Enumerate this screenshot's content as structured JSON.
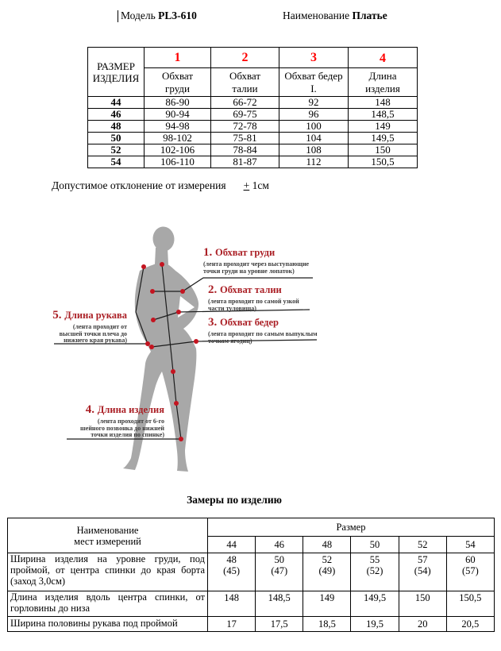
{
  "header": {
    "model_label": "Модель",
    "model_value": "PL3-610",
    "name_label": "Наименование",
    "name_value": "Платье"
  },
  "size_table": {
    "corner": "РАЗМЕР ИЗДЕЛИЯ",
    "columns": [
      {
        "num": "1",
        "title": [
          "Обхват",
          "груди"
        ]
      },
      {
        "num": "2",
        "title": [
          "Обхват",
          "талии"
        ]
      },
      {
        "num": "3",
        "title": [
          "Обхват бедер",
          "I."
        ]
      },
      {
        "num": "4",
        "title": [
          "Длина",
          "изделия"
        ]
      }
    ],
    "rows": [
      {
        "size": "44",
        "values": [
          "86-90",
          "66-72",
          "92",
          "148"
        ]
      },
      {
        "size": "46",
        "values": [
          "90-94",
          "69-75",
          "96",
          "148,5"
        ]
      },
      {
        "size": "48",
        "values": [
          "94-98",
          "72-78",
          "100",
          "149"
        ]
      },
      {
        "size": "50",
        "values": [
          "98-102",
          "75-81",
          "104",
          "149,5"
        ]
      },
      {
        "size": "52",
        "values": [
          "102-106",
          "78-84",
          "108",
          "150"
        ]
      },
      {
        "size": "54",
        "values": [
          "106-110",
          "81-87",
          "112",
          "150,5"
        ]
      }
    ]
  },
  "tolerance": {
    "label": "Допустимое отклонение от измерения",
    "sign": "+",
    "value": "1см"
  },
  "figure": {
    "annotations": [
      {
        "key": "a1",
        "num": "1.",
        "title": "Обхват груди",
        "desc": [
          "(лента проходит через выступающие",
          "точки груди на уровне лопаток)"
        ]
      },
      {
        "key": "a2",
        "num": "2.",
        "title": "Обхват талии",
        "desc": [
          "(лента проходит по самой узкой",
          "части туловища)"
        ]
      },
      {
        "key": "a3",
        "num": "3.",
        "title": "Обхват бедер",
        "desc": [
          "(лента проходит по самым выпуклым",
          "точкам ягодиц)"
        ]
      },
      {
        "key": "a5",
        "num": "5.",
        "title": "Длина рукава",
        "desc": [
          "(лента проходит от",
          "высшей точки плеча до",
          "нижнего края рукава)"
        ]
      },
      {
        "key": "a4",
        "num": "4.",
        "title": "Длина изделия",
        "desc": [
          "(лента проходит от 6-го",
          "шейного позвонка до нижней",
          "точки изделия по спинке)"
        ]
      }
    ]
  },
  "measures": {
    "title": "Замеры по изделию",
    "name_header": [
      "Наименование",
      "мест измерений"
    ],
    "size_header": "Размер",
    "sizes": [
      "44",
      "46",
      "48",
      "50",
      "52",
      "54"
    ],
    "rows": [
      {
        "name": "Ширина изделия на уровне груди, под проймой, от центра спинки до края борта (заход 3,0см)",
        "values": [
          [
            "48",
            "(45)"
          ],
          [
            "50",
            "(47)"
          ],
          [
            "52",
            "(49)"
          ],
          [
            "55",
            "(52)"
          ],
          [
            "57",
            "(54)"
          ],
          [
            "60",
            "(57)"
          ]
        ]
      },
      {
        "name": "Длина изделия вдоль центра спинки, от горловины до низа",
        "values": [
          [
            "148"
          ],
          [
            "148,5"
          ],
          [
            "149"
          ],
          [
            "149,5"
          ],
          [
            "150"
          ],
          [
            "150,5"
          ]
        ]
      },
      {
        "name": "Ширина половины рукава под проймой",
        "values": [
          [
            "17"
          ],
          [
            "17,5"
          ],
          [
            "18,5"
          ],
          [
            "19,5"
          ],
          [
            "20"
          ],
          [
            "20,5"
          ]
        ]
      }
    ]
  },
  "colors": {
    "table_number_red": "#ff0000",
    "annotation_red": "#ab2026",
    "silhouette_gray": "#a8a8a8",
    "dot_red": "#c41420",
    "line_black": "#1c1c1c"
  }
}
